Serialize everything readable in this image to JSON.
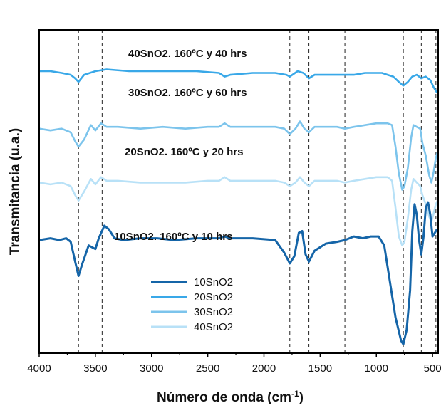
{
  "chart_data": {
    "type": "line",
    "title": "",
    "xlabel": "Número de onda (cm",
    "xlabel_sup": "-1",
    "xlabel_end": ")",
    "ylabel": "Transmitancia (u.a.)",
    "xlim": [
      4000,
      450
    ],
    "x_reversed": true,
    "xticks": [
      4000,
      3500,
      3000,
      2500,
      2000,
      1500,
      1000,
      500
    ],
    "y_ticks_labels": false,
    "grid": false,
    "legend_position": "lower-center",
    "reference_lines": [
      3650,
      3440,
      1770,
      1600,
      1280,
      760,
      600,
      470
    ],
    "annotations": [
      "40SnO2. 160ºC y 40 hrs",
      "30SnO2. 160ºC y 60 hrs",
      "20SnO2. 160ºC y 20 hrs",
      "10SnO2. 160ºC y 10 hrs"
    ],
    "series": [
      {
        "name": "10SnO2",
        "color": "#1565a8",
        "points": [
          [
            4000,
            8.8
          ],
          [
            3900,
            8.9
          ],
          [
            3820,
            8.8
          ],
          [
            3760,
            8.9
          ],
          [
            3720,
            8.7
          ],
          [
            3680,
            7.6
          ],
          [
            3650,
            6.8
          ],
          [
            3620,
            7.4
          ],
          [
            3560,
            8.5
          ],
          [
            3500,
            8.3
          ],
          [
            3470,
            8.9
          ],
          [
            3420,
            9.6
          ],
          [
            3380,
            9.4
          ],
          [
            3330,
            8.9
          ],
          [
            3250,
            8.8
          ],
          [
            3100,
            8.9
          ],
          [
            2950,
            8.9
          ],
          [
            2800,
            8.8
          ],
          [
            2600,
            8.9
          ],
          [
            2400,
            8.9
          ],
          [
            2350,
            9.0
          ],
          [
            2300,
            8.9
          ],
          [
            2100,
            8.9
          ],
          [
            1900,
            8.8
          ],
          [
            1820,
            8.1
          ],
          [
            1770,
            7.5
          ],
          [
            1730,
            7.9
          ],
          [
            1690,
            9.2
          ],
          [
            1660,
            9.3
          ],
          [
            1630,
            8.0
          ],
          [
            1600,
            7.6
          ],
          [
            1550,
            8.2
          ],
          [
            1450,
            8.6
          ],
          [
            1350,
            8.7
          ],
          [
            1280,
            8.8
          ],
          [
            1200,
            9.0
          ],
          [
            1120,
            8.9
          ],
          [
            1050,
            9.0
          ],
          [
            980,
            9.0
          ],
          [
            930,
            8.5
          ],
          [
            880,
            6.5
          ],
          [
            830,
            4.5
          ],
          [
            780,
            3.2
          ],
          [
            760,
            3.0
          ],
          [
            730,
            3.8
          ],
          [
            700,
            6.0
          ],
          [
            680,
            9.3
          ],
          [
            660,
            10.8
          ],
          [
            640,
            10.2
          ],
          [
            620,
            8.8
          ],
          [
            600,
            8.0
          ],
          [
            580,
            9.0
          ],
          [
            560,
            10.6
          ],
          [
            540,
            10.9
          ],
          [
            520,
            10.2
          ],
          [
            500,
            9.0
          ],
          [
            480,
            9.2
          ],
          [
            460,
            9.4
          ]
        ]
      },
      {
        "name": "20SnO2",
        "color": "#39a8e8",
        "points": [
          [
            4000,
            18.2
          ],
          [
            3900,
            18.2
          ],
          [
            3800,
            18.1
          ],
          [
            3720,
            18.0
          ],
          [
            3680,
            17.8
          ],
          [
            3650,
            17.6
          ],
          [
            3600,
            18.0
          ],
          [
            3500,
            18.2
          ],
          [
            3400,
            18.3
          ],
          [
            3200,
            18.2
          ],
          [
            3000,
            18.2
          ],
          [
            2800,
            18.2
          ],
          [
            2600,
            18.2
          ],
          [
            2400,
            18.1
          ],
          [
            2350,
            17.9
          ],
          [
            2300,
            18.0
          ],
          [
            2100,
            18.1
          ],
          [
            1900,
            18.1
          ],
          [
            1800,
            18.0
          ],
          [
            1770,
            17.9
          ],
          [
            1700,
            18.2
          ],
          [
            1650,
            18.1
          ],
          [
            1600,
            17.8
          ],
          [
            1550,
            18.0
          ],
          [
            1450,
            18.0
          ],
          [
            1300,
            18.0
          ],
          [
            1200,
            18.0
          ],
          [
            1100,
            18.1
          ],
          [
            1000,
            18.1
          ],
          [
            950,
            18.1
          ],
          [
            900,
            18.0
          ],
          [
            850,
            17.9
          ],
          [
            800,
            17.6
          ],
          [
            760,
            17.4
          ],
          [
            720,
            17.6
          ],
          [
            680,
            17.9
          ],
          [
            640,
            18.0
          ],
          [
            600,
            17.8
          ],
          [
            560,
            17.9
          ],
          [
            520,
            17.7
          ],
          [
            490,
            17.3
          ],
          [
            460,
            17.0
          ]
        ]
      },
      {
        "name": "30SnO2",
        "color": "#7cc4ec",
        "points": [
          [
            4000,
            15.0
          ],
          [
            3900,
            14.9
          ],
          [
            3800,
            15.0
          ],
          [
            3720,
            14.8
          ],
          [
            3680,
            14.3
          ],
          [
            3650,
            14.0
          ],
          [
            3600,
            14.4
          ],
          [
            3540,
            15.2
          ],
          [
            3500,
            14.9
          ],
          [
            3450,
            15.3
          ],
          [
            3400,
            15.1
          ],
          [
            3300,
            15.1
          ],
          [
            3100,
            15.0
          ],
          [
            2900,
            15.1
          ],
          [
            2700,
            15.0
          ],
          [
            2500,
            15.1
          ],
          [
            2400,
            15.1
          ],
          [
            2350,
            15.3
          ],
          [
            2300,
            15.1
          ],
          [
            2100,
            15.1
          ],
          [
            1900,
            15.1
          ],
          [
            1820,
            15.0
          ],
          [
            1770,
            14.7
          ],
          [
            1720,
            15.0
          ],
          [
            1680,
            15.4
          ],
          [
            1640,
            15.0
          ],
          [
            1600,
            14.8
          ],
          [
            1550,
            15.1
          ],
          [
            1450,
            15.1
          ],
          [
            1350,
            15.1
          ],
          [
            1280,
            15.0
          ],
          [
            1200,
            15.1
          ],
          [
            1100,
            15.2
          ],
          [
            1000,
            15.3
          ],
          [
            950,
            15.3
          ],
          [
            900,
            15.3
          ],
          [
            860,
            15.2
          ],
          [
            830,
            14.0
          ],
          [
            800,
            12.5
          ],
          [
            770,
            11.6
          ],
          [
            750,
            11.8
          ],
          [
            720,
            12.8
          ],
          [
            690,
            14.5
          ],
          [
            670,
            15.2
          ],
          [
            640,
            15.1
          ],
          [
            610,
            15.0
          ],
          [
            590,
            14.2
          ],
          [
            560,
            13.5
          ],
          [
            530,
            12.4
          ],
          [
            510,
            12.0
          ],
          [
            490,
            12.6
          ],
          [
            470,
            13.4
          ],
          [
            455,
            13.7
          ]
        ]
      },
      {
        "name": "40SnO2",
        "color": "#b8e1f7",
        "points": [
          [
            4000,
            12.0
          ],
          [
            3900,
            11.9
          ],
          [
            3800,
            12.0
          ],
          [
            3720,
            11.8
          ],
          [
            3680,
            11.3
          ],
          [
            3650,
            11.0
          ],
          [
            3600,
            11.5
          ],
          [
            3540,
            12.2
          ],
          [
            3500,
            11.9
          ],
          [
            3450,
            12.3
          ],
          [
            3400,
            12.1
          ],
          [
            3300,
            12.1
          ],
          [
            3100,
            12.0
          ],
          [
            2900,
            12.0
          ],
          [
            2700,
            12.0
          ],
          [
            2500,
            12.1
          ],
          [
            2400,
            12.1
          ],
          [
            2350,
            12.3
          ],
          [
            2300,
            12.1
          ],
          [
            2100,
            12.1
          ],
          [
            1900,
            12.1
          ],
          [
            1820,
            12.0
          ],
          [
            1770,
            11.8
          ],
          [
            1720,
            12.0
          ],
          [
            1680,
            12.3
          ],
          [
            1640,
            12.0
          ],
          [
            1600,
            11.8
          ],
          [
            1550,
            12.1
          ],
          [
            1450,
            12.1
          ],
          [
            1350,
            12.1
          ],
          [
            1280,
            12.0
          ],
          [
            1200,
            12.1
          ],
          [
            1100,
            12.2
          ],
          [
            1000,
            12.3
          ],
          [
            950,
            12.3
          ],
          [
            900,
            12.3
          ],
          [
            860,
            12.1
          ],
          [
            830,
            10.6
          ],
          [
            800,
            9.0
          ],
          [
            770,
            8.5
          ],
          [
            750,
            8.7
          ],
          [
            720,
            10.0
          ],
          [
            690,
            11.6
          ],
          [
            670,
            12.2
          ],
          [
            640,
            12.0
          ],
          [
            610,
            11.8
          ],
          [
            590,
            11.3
          ],
          [
            560,
            10.8
          ],
          [
            530,
            10.1
          ],
          [
            510,
            9.8
          ],
          [
            490,
            10.3
          ],
          [
            470,
            10.8
          ],
          [
            455,
            11.0
          ]
        ]
      }
    ]
  }
}
